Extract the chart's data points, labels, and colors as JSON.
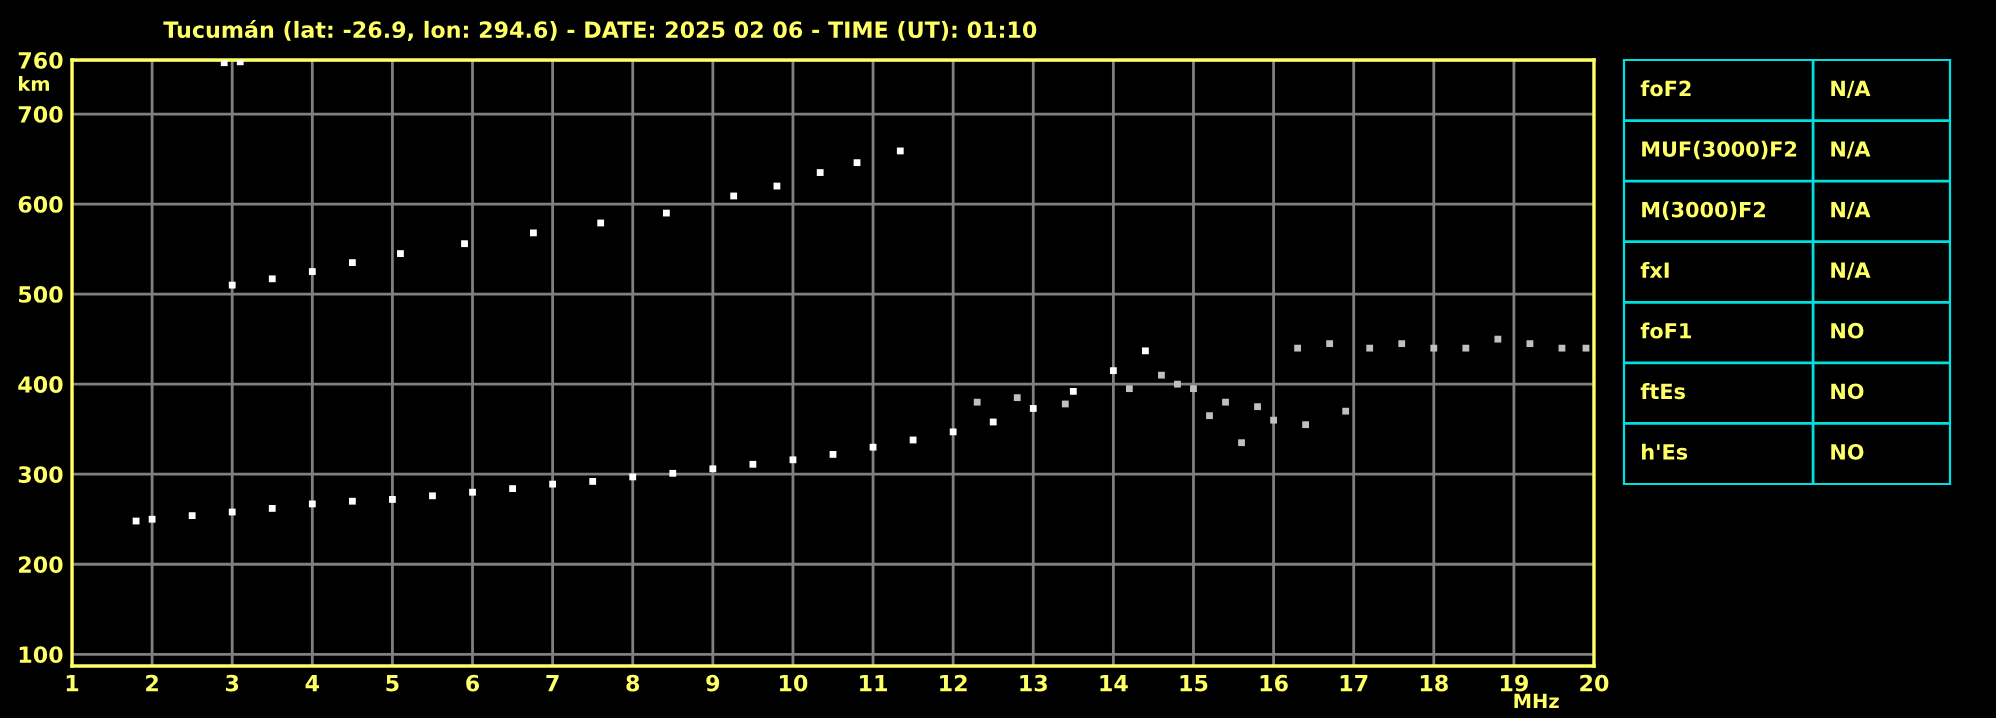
{
  "chart_data": [
    {
      "type": "scatter",
      "title": "Tucumán (lat: -26.9, lon: 294.6) - DATE: 2025 02 06 - TIME (UT): 01:10",
      "xlabel": "MHz",
      "ylabel": "km",
      "xlim": [
        1,
        20
      ],
      "xticks": [
        1,
        2,
        3,
        4,
        5,
        6,
        7,
        8,
        9,
        10,
        11,
        12,
        13,
        14,
        15,
        16,
        17,
        18,
        19,
        20
      ],
      "ylim": [
        87,
        760
      ],
      "yticks": [
        100,
        200,
        300,
        400,
        500,
        600,
        700,
        760
      ],
      "grid": true,
      "marker": "square",
      "series": [
        {
          "color": "#ffffff",
          "x": [
            1.8,
            2,
            2.5,
            3,
            3.5,
            4,
            4.5,
            5,
            5.5,
            6,
            6.5,
            7,
            7.5,
            8,
            8.5,
            9,
            9.5,
            10,
            10.5,
            11,
            11.5,
            12,
            12.5,
            13,
            13.5,
            14,
            14.4
          ],
          "values": [
            248,
            250,
            254,
            258,
            262,
            267,
            270,
            272,
            276,
            280,
            284,
            289,
            292,
            297,
            301,
            306,
            311,
            316,
            322,
            330,
            338,
            347,
            358,
            373,
            392,
            415,
            437
          ]
        },
        {
          "color": "#ffffff",
          "x": [
            3.0,
            3.5,
            4,
            4.5,
            5.1,
            5.9,
            6.76,
            7.6,
            8.42,
            9.26,
            9.8,
            10.34,
            10.8,
            11.34
          ],
          "values": [
            510,
            517,
            525,
            535,
            545,
            556,
            568,
            579,
            590,
            609,
            620,
            635,
            646,
            659
          ]
        },
        {
          "color": "#ffffff",
          "x": [
            2.9,
            3.1
          ],
          "values": [
            757,
            758
          ]
        },
        {
          "color": "#c0c0c0",
          "x": [
            12.3,
            12.8,
            13.4,
            14.2,
            14.6,
            15.0,
            15.4,
            15.8,
            16.3,
            16.7,
            17.2,
            17.6,
            18.0,
            18.4,
            18.8,
            19.2,
            19.6,
            19.9,
            15.2,
            15.6,
            16.0,
            16.4,
            16.9,
            14.8
          ],
          "values": [
            380,
            385,
            378,
            395,
            410,
            395,
            380,
            375,
            440,
            445,
            440,
            445,
            440,
            440,
            450,
            445,
            440,
            440,
            365,
            335,
            360,
            355,
            370,
            400
          ]
        }
      ]
    },
    {
      "type": "other",
      "annotations": [
        "foF2",
        "N/A",
        "MUF(3000)F2",
        "N/A",
        "M(3000)F2",
        "N/A",
        "fxI",
        "N/A",
        "foF1",
        "NO",
        "ftEs",
        "NO",
        "h'Es",
        "NO"
      ]
    }
  ]
}
